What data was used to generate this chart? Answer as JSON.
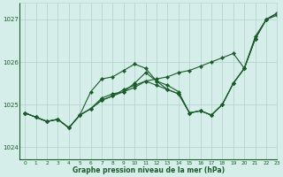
{
  "title": "Graphe pression niveau de la mer (hPa)",
  "background_color": "#d6eeea",
  "grid_color": "#b8d4ce",
  "line_color": "#1a5c2a",
  "xlim": [
    -0.5,
    23
  ],
  "ylim": [
    1023.7,
    1027.4
  ],
  "yticks": [
    1024,
    1025,
    1026,
    1027
  ],
  "xticks": [
    0,
    1,
    2,
    3,
    4,
    5,
    6,
    7,
    8,
    9,
    10,
    11,
    12,
    13,
    14,
    15,
    16,
    17,
    18,
    19,
    20,
    21,
    22,
    23
  ],
  "series": [
    [
      1024.8,
      1024.7,
      1024.6,
      1024.65,
      1024.45,
      1024.75,
      1024.9,
      1025.1,
      1025.2,
      1025.35,
      1025.45,
      1025.55,
      1025.6,
      1025.65,
      1025.75,
      1025.8,
      1025.9,
      1026.0,
      1026.1,
      1026.2,
      1025.85,
      1026.6,
      1027.0,
      1027.1
    ],
    [
      1024.8,
      1024.7,
      1024.6,
      1024.65,
      1024.45,
      1024.75,
      1025.3,
      1025.6,
      1025.65,
      1025.8,
      1025.95,
      1025.85,
      1025.55,
      1025.45,
      1025.3,
      1024.8,
      1024.85,
      1024.75,
      1025.0,
      1025.5,
      1025.85,
      1026.55,
      1027.0,
      1027.15
    ],
    [
      1024.8,
      1024.7,
      1024.6,
      1024.65,
      1024.45,
      1024.75,
      1024.9,
      1025.15,
      1025.25,
      1025.3,
      1025.5,
      1025.75,
      1025.55,
      1025.35,
      1025.25,
      1024.8,
      1024.85,
      1024.75,
      1025.0,
      1025.5,
      1025.85,
      1026.55,
      1027.0,
      1027.15
    ],
    [
      1024.8,
      1024.7,
      1024.6,
      1024.65,
      1024.45,
      1024.75,
      1024.9,
      1025.1,
      1025.2,
      1025.3,
      1025.4,
      1025.55,
      1025.45,
      1025.35,
      1025.25,
      1024.8,
      1024.85,
      1024.75,
      1025.0,
      1025.5,
      1025.85,
      1026.55,
      1027.0,
      1027.15
    ]
  ]
}
